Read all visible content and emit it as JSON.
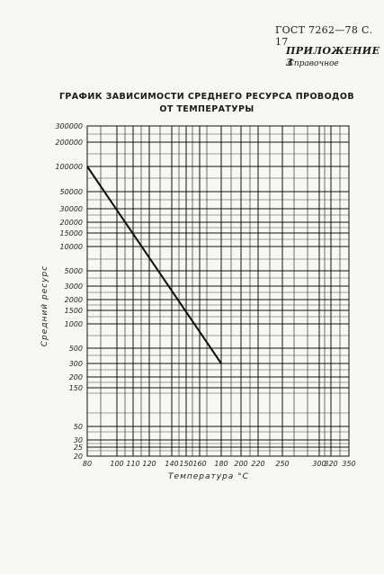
{
  "header": {
    "standard": "ГОСТ 7262—78 С. 17",
    "appendix": "ПРИЛОЖЕНИЕ 3",
    "reference": "Справочное"
  },
  "chart_data": {
    "type": "line",
    "title_lines": [
      "ГРАФИК ЗАВИСИМОСТИ СРЕДНЕГО РЕСУРСА ПРОВОДОВ",
      "ОТ ТЕМПЕРАТУРЫ"
    ],
    "xlabel": "Температура °С",
    "ylabel": "Средний ресурс",
    "x_tick_labels": [
      "80",
      "100",
      "110",
      "120",
      "140",
      "150",
      "160",
      "180",
      "200",
      "220",
      "250",
      "300",
      "320",
      "350"
    ],
    "y_tick_labels": [
      "300000",
      "200000",
      "100000",
      "50000",
      "30000",
      "20000",
      "15000",
      "10000",
      "5000",
      "3000",
      "2000",
      "1500",
      "1000",
      "500",
      "300",
      "200",
      "150",
      "50",
      "30",
      "25",
      "20"
    ],
    "y_scale": "log",
    "grid": true,
    "series": [
      {
        "points": [
          {
            "x": 80,
            "y": 100000
          },
          {
            "x": 180,
            "y": 300
          }
        ]
      }
    ]
  }
}
